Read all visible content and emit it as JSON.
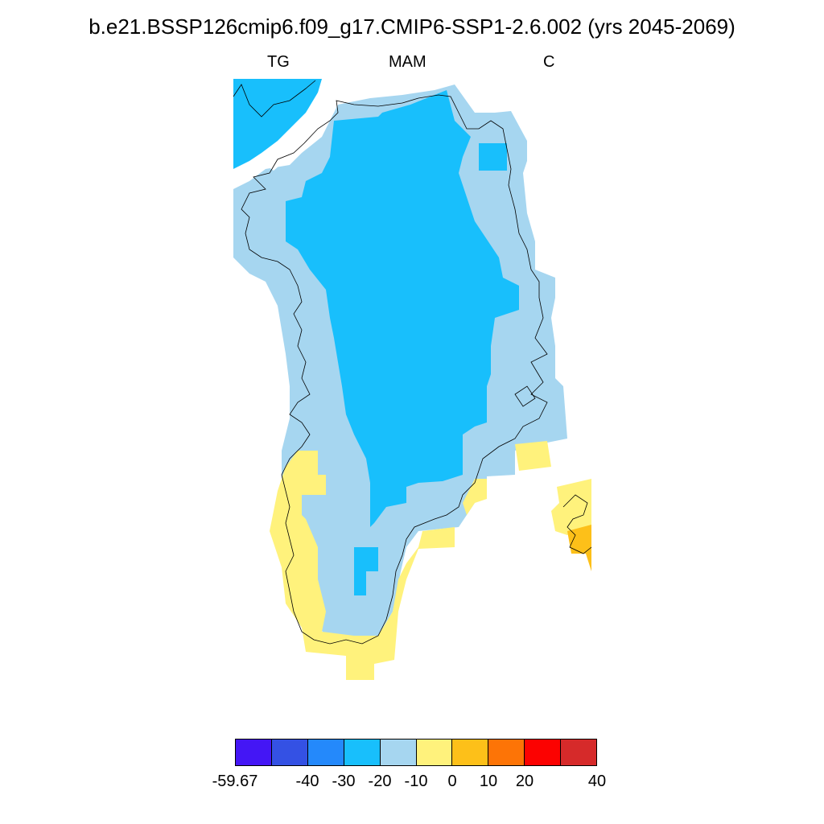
{
  "title": "b.e21.BSSP126cmip6.f09_g17.CMIP6-SSP1-2.6.002 (yrs 2045-2069)",
  "subtitle_left": "TG",
  "subtitle_center": "MAM",
  "subtitle_right": "C",
  "colorbar": {
    "colors": [
      "#4416f5",
      "#3451e4",
      "#2489fb",
      "#18bffc",
      "#a6d6f0",
      "#fff27c",
      "#fdc019",
      "#fd7406",
      "#fc0201",
      "#d62a2a"
    ],
    "tick_labels": [
      "-59.67",
      "-40",
      "-30",
      "-20",
      "-10",
      "0",
      "10",
      "20",
      "40"
    ]
  },
  "map": {
    "region": "Greenland",
    "fill_colors": {
      "water": "#ffffff",
      "class_neg30_neg20": "#18bffc",
      "class_neg20_neg10": "#a6d6f0",
      "class_neg10_0": "#fff27c",
      "class_0_10": "#fdc019"
    }
  }
}
